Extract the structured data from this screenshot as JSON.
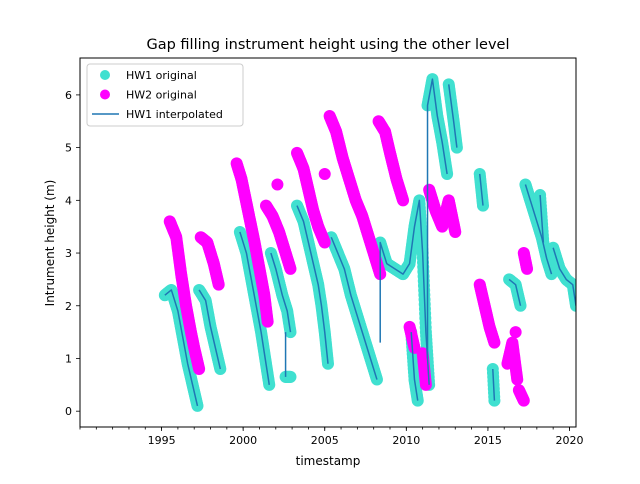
{
  "chart_data": {
    "type": "scatter",
    "title": "Gap filling instrument height using the other level",
    "xlabel": "timestamp",
    "ylabel": "Intrument height (m)",
    "xlim": [
      1990.0,
      2020.4
    ],
    "ylim": [
      -0.3,
      6.7
    ],
    "x_ticks": [
      1995,
      2000,
      2005,
      2010,
      2015,
      2020
    ],
    "x_tick_labels": [
      "1995",
      "2000",
      "2005",
      "2010",
      "2015",
      "2020"
    ],
    "y_ticks": [
      0,
      1,
      2,
      3,
      4,
      5,
      6
    ],
    "y_tick_labels": [
      "0",
      "1",
      "2",
      "3",
      "4",
      "5",
      "6"
    ],
    "legend_position": "top-left",
    "colors": {
      "hw1": "#40e0d0",
      "hw2": "#ff00ff",
      "interp": "#1f77b4"
    },
    "legend": [
      {
        "label": "HW1 original",
        "marker": "dot",
        "color": "#40e0d0"
      },
      {
        "label": "HW2 original",
        "marker": "dot",
        "color": "#ff00ff"
      },
      {
        "label": "HW1 interpolated",
        "marker": "line",
        "color": "#1f77b4"
      }
    ],
    "series": [
      {
        "name": "HW1 original",
        "segments": [
          [
            [
              1995.2,
              2.2
            ],
            [
              1995.6,
              2.3
            ],
            [
              1996.0,
              1.9
            ],
            [
              1996.3,
              1.4
            ],
            [
              1996.6,
              0.9
            ],
            [
              1996.9,
              0.5
            ],
            [
              1997.2,
              0.1
            ]
          ],
          [
            [
              1997.3,
              2.3
            ],
            [
              1997.7,
              2.1
            ],
            [
              1998.0,
              1.6
            ],
            [
              1998.3,
              1.2
            ],
            [
              1998.6,
              0.8
            ]
          ],
          [
            [
              1999.8,
              3.4
            ],
            [
              2000.2,
              3.0
            ],
            [
              2000.5,
              2.5
            ],
            [
              2000.8,
              2.0
            ],
            [
              2001.1,
              1.5
            ],
            [
              2001.4,
              0.9
            ],
            [
              2001.6,
              0.5
            ]
          ],
          [
            [
              2001.7,
              3.0
            ],
            [
              2002.0,
              2.7
            ],
            [
              2002.4,
              2.2
            ],
            [
              2002.7,
              1.9
            ],
            [
              2002.9,
              1.5
            ]
          ],
          [
            [
              2002.6,
              0.65
            ],
            [
              2002.9,
              0.65
            ]
          ],
          [
            [
              2003.3,
              3.9
            ],
            [
              2003.7,
              3.6
            ],
            [
              2004.0,
              3.2
            ],
            [
              2004.3,
              2.8
            ],
            [
              2004.6,
              2.4
            ],
            [
              2004.8,
              2.0
            ],
            [
              2005.0,
              1.5
            ],
            [
              2005.2,
              0.9
            ]
          ],
          [
            [
              2005.4,
              3.3
            ],
            [
              2005.8,
              3.0
            ],
            [
              2006.2,
              2.7
            ],
            [
              2006.6,
              2.2
            ],
            [
              2007.0,
              1.8
            ],
            [
              2007.4,
              1.4
            ],
            [
              2007.8,
              1.0
            ],
            [
              2008.2,
              0.6
            ]
          ],
          [
            [
              2008.4,
              3.2
            ],
            [
              2008.8,
              2.8
            ],
            [
              2009.3,
              2.7
            ],
            [
              2009.8,
              2.6
            ],
            [
              2010.2,
              2.8
            ],
            [
              2010.5,
              3.5
            ],
            [
              2010.8,
              4.0
            ],
            [
              2011.0,
              3.0
            ],
            [
              2011.2,
              1.5
            ],
            [
              2011.4,
              0.5
            ]
          ],
          [
            [
              2010.3,
              1.5
            ],
            [
              2010.5,
              0.6
            ],
            [
              2010.7,
              0.2
            ]
          ],
          [
            [
              2011.3,
              5.8
            ],
            [
              2011.6,
              6.3
            ],
            [
              2011.9,
              5.6
            ],
            [
              2012.2,
              5.1
            ],
            [
              2012.5,
              4.5
            ]
          ],
          [
            [
              2012.6,
              6.2
            ],
            [
              2012.9,
              5.5
            ],
            [
              2013.1,
              5.0
            ]
          ],
          [
            [
              2014.5,
              4.5
            ],
            [
              2014.7,
              3.9
            ]
          ],
          [
            [
              2015.3,
              0.8
            ],
            [
              2015.4,
              0.2
            ]
          ],
          [
            [
              2016.3,
              2.5
            ],
            [
              2016.7,
              2.4
            ],
            [
              2017.0,
              2.0
            ]
          ],
          [
            [
              2017.3,
              4.3
            ],
            [
              2017.6,
              4.0
            ],
            [
              2018.0,
              3.6
            ],
            [
              2018.3,
              3.3
            ],
            [
              2018.6,
              2.9
            ],
            [
              2018.9,
              2.6
            ]
          ],
          [
            [
              2018.2,
              4.1
            ],
            [
              2018.4,
              3.2
            ]
          ],
          [
            [
              2019.0,
              3.1
            ],
            [
              2019.4,
              2.7
            ],
            [
              2019.8,
              2.5
            ],
            [
              2020.2,
              2.4
            ],
            [
              2020.4,
              2.0
            ]
          ]
        ]
      },
      {
        "name": "HW2 original",
        "segments": [
          [
            [
              1995.5,
              3.6
            ],
            [
              1995.9,
              3.3
            ],
            [
              1996.2,
              2.6
            ],
            [
              1996.5,
              2.0
            ],
            [
              1996.8,
              1.5
            ],
            [
              1997.0,
              1.2
            ],
            [
              1997.3,
              0.8
            ]
          ],
          [
            [
              1997.4,
              3.3
            ],
            [
              1997.8,
              3.2
            ],
            [
              1998.2,
              2.8
            ],
            [
              1998.5,
              2.4
            ]
          ],
          [
            [
              1999.6,
              4.7
            ],
            [
              1999.9,
              4.4
            ],
            [
              2000.3,
              3.8
            ],
            [
              2000.7,
              3.2
            ],
            [
              2001.0,
              2.7
            ],
            [
              2001.3,
              2.2
            ],
            [
              2001.5,
              1.7
            ]
          ],
          [
            [
              2001.4,
              3.9
            ],
            [
              2001.8,
              3.7
            ],
            [
              2002.2,
              3.4
            ],
            [
              2002.5,
              3.1
            ],
            [
              2002.9,
              2.7
            ]
          ],
          [
            [
              2002.1,
              4.3
            ]
          ],
          [
            [
              2003.3,
              4.9
            ],
            [
              2003.7,
              4.6
            ],
            [
              2004.0,
              4.2
            ],
            [
              2004.3,
              3.8
            ],
            [
              2004.6,
              3.5
            ],
            [
              2005.0,
              3.2
            ]
          ],
          [
            [
              2005.0,
              4.5
            ]
          ],
          [
            [
              2005.3,
              5.6
            ],
            [
              2005.7,
              5.3
            ],
            [
              2006.1,
              4.8
            ],
            [
              2006.5,
              4.4
            ],
            [
              2006.9,
              4.0
            ],
            [
              2007.3,
              3.7
            ],
            [
              2007.7,
              3.3
            ],
            [
              2008.1,
              2.9
            ],
            [
              2008.4,
              2.6
            ]
          ],
          [
            [
              2008.3,
              5.5
            ],
            [
              2008.7,
              5.3
            ],
            [
              2009.0,
              4.9
            ],
            [
              2009.4,
              4.4
            ],
            [
              2009.8,
              4.0
            ]
          ],
          [
            [
              2010.2,
              1.6
            ],
            [
              2010.5,
              1.2
            ]
          ],
          [
            [
              2011.0,
              1.1
            ],
            [
              2011.2,
              0.5
            ]
          ],
          [
            [
              2011.4,
              4.2
            ],
            [
              2011.8,
              3.8
            ],
            [
              2012.2,
              3.5
            ],
            [
              2012.6,
              4.0
            ],
            [
              2013.0,
              3.4
            ]
          ],
          [
            [
              2014.5,
              2.4
            ],
            [
              2014.8,
              2.0
            ],
            [
              2015.1,
              1.6
            ],
            [
              2015.4,
              1.3
            ]
          ],
          [
            [
              2016.2,
              0.9
            ],
            [
              2016.5,
              1.3
            ],
            [
              2016.8,
              0.6
            ]
          ],
          [
            [
              2016.7,
              1.5
            ]
          ],
          [
            [
              2016.9,
              0.4
            ],
            [
              2017.2,
              0.2
            ]
          ],
          [
            [
              2017.2,
              3.0
            ],
            [
              2017.4,
              2.7
            ]
          ]
        ]
      },
      {
        "name": "HW1 interpolated",
        "segments": [
          [
            [
              1995.2,
              2.2
            ],
            [
              1995.6,
              2.3
            ],
            [
              1996.0,
              1.9
            ],
            [
              1996.3,
              1.4
            ],
            [
              1996.6,
              0.9
            ],
            [
              1996.9,
              0.5
            ],
            [
              1997.2,
              0.1
            ]
          ],
          [
            [
              1997.3,
              2.3
            ],
            [
              1997.7,
              2.1
            ],
            [
              1998.0,
              1.6
            ],
            [
              1998.3,
              1.2
            ],
            [
              1998.6,
              0.8
            ]
          ],
          [
            [
              1999.8,
              3.4
            ],
            [
              2000.2,
              3.0
            ],
            [
              2000.5,
              2.5
            ],
            [
              2000.8,
              2.0
            ],
            [
              2001.1,
              1.5
            ],
            [
              2001.4,
              0.9
            ],
            [
              2001.6,
              0.5
            ]
          ],
          [
            [
              2001.7,
              3.0
            ],
            [
              2002.0,
              2.7
            ],
            [
              2002.4,
              2.2
            ],
            [
              2002.7,
              1.9
            ],
            [
              2002.9,
              1.5
            ]
          ],
          [
            [
              2002.6,
              1.5
            ],
            [
              2002.6,
              0.65
            ]
          ],
          [
            [
              2003.3,
              3.9
            ],
            [
              2003.7,
              3.6
            ],
            [
              2004.0,
              3.2
            ],
            [
              2004.3,
              2.8
            ],
            [
              2004.6,
              2.4
            ],
            [
              2004.8,
              2.0
            ],
            [
              2005.0,
              1.5
            ],
            [
              2005.2,
              0.9
            ]
          ],
          [
            [
              2005.4,
              3.3
            ],
            [
              2005.8,
              3.0
            ],
            [
              2006.2,
              2.7
            ],
            [
              2006.6,
              2.2
            ],
            [
              2007.0,
              1.8
            ],
            [
              2007.4,
              1.4
            ],
            [
              2007.8,
              1.0
            ],
            [
              2008.2,
              0.6
            ]
          ],
          [
            [
              2008.4,
              1.3
            ],
            [
              2008.4,
              3.2
            ],
            [
              2008.8,
              2.8
            ],
            [
              2009.3,
              2.7
            ],
            [
              2009.8,
              2.6
            ],
            [
              2010.2,
              2.8
            ],
            [
              2010.5,
              3.5
            ],
            [
              2010.8,
              4.0
            ],
            [
              2011.0,
              3.0
            ],
            [
              2011.2,
              1.5
            ],
            [
              2011.4,
              0.5
            ]
          ],
          [
            [
              2010.3,
              1.5
            ],
            [
              2010.5,
              0.6
            ],
            [
              2010.7,
              0.2
            ]
          ],
          [
            [
              2011.3,
              1.0
            ],
            [
              2011.3,
              5.8
            ],
            [
              2011.6,
              6.3
            ],
            [
              2011.9,
              5.6
            ],
            [
              2012.2,
              5.1
            ],
            [
              2012.5,
              4.5
            ]
          ],
          [
            [
              2012.6,
              6.2
            ],
            [
              2012.9,
              5.5
            ],
            [
              2013.1,
              5.0
            ]
          ],
          [
            [
              2014.5,
              4.5
            ],
            [
              2014.7,
              3.9
            ]
          ],
          [
            [
              2015.3,
              0.8
            ],
            [
              2015.4,
              0.2
            ]
          ],
          [
            [
              2016.3,
              2.5
            ],
            [
              2016.7,
              2.4
            ],
            [
              2017.0,
              2.0
            ]
          ],
          [
            [
              2017.3,
              4.3
            ],
            [
              2017.6,
              4.0
            ],
            [
              2018.0,
              3.6
            ],
            [
              2018.3,
              3.3
            ],
            [
              2018.6,
              2.9
            ],
            [
              2018.9,
              2.6
            ]
          ],
          [
            [
              2018.2,
              4.1
            ],
            [
              2018.4,
              3.2
            ]
          ],
          [
            [
              2019.0,
              3.1
            ],
            [
              2019.4,
              2.7
            ],
            [
              2019.8,
              2.5
            ],
            [
              2020.2,
              2.4
            ],
            [
              2020.4,
              2.0
            ]
          ]
        ]
      }
    ]
  }
}
